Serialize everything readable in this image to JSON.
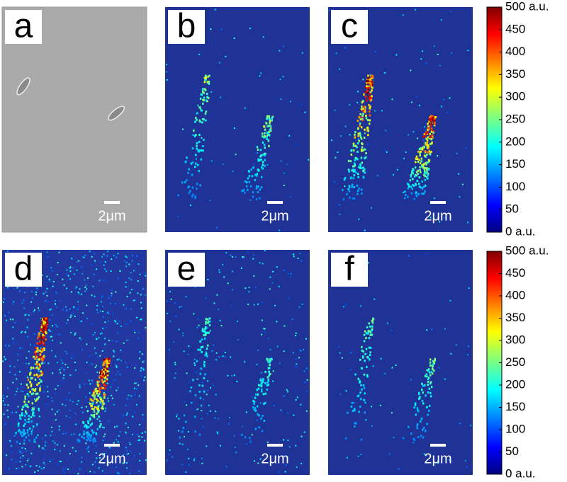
{
  "panels": [
    {
      "label": "a",
      "scale_bar": "2μm"
    },
    {
      "label": "b",
      "scale_bar": "2μm"
    },
    {
      "label": "c",
      "scale_bar": "2μm"
    },
    {
      "label": "d",
      "scale_bar": "2μm"
    },
    {
      "label": "e",
      "scale_bar": "2μm"
    },
    {
      "label": "f",
      "scale_bar": "2μm"
    }
  ],
  "colorbars": [
    {
      "lim": [
        0,
        500
      ],
      "ticks": [
        {
          "value": 500,
          "label": "500 a.u."
        },
        450,
        400,
        350,
        300,
        250,
        200,
        150,
        100,
        50,
        {
          "value": 0,
          "label": "0 a.u."
        }
      ]
    },
    {
      "lim": [
        0,
        500
      ],
      "ticks": [
        {
          "value": 500,
          "label": "500 a.u."
        },
        450,
        400,
        350,
        300,
        250,
        200,
        150,
        100,
        50,
        {
          "value": 0,
          "label": "0 a.u."
        }
      ]
    }
  ]
}
